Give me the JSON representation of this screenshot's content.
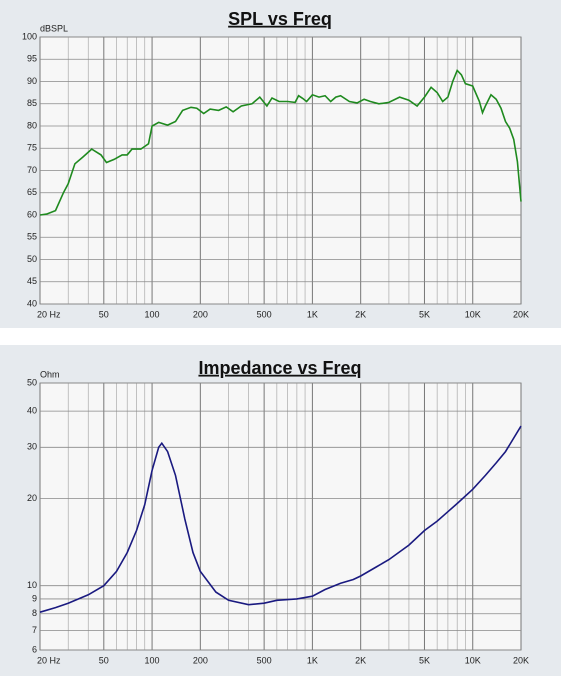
{
  "chart_data": [
    {
      "type": "line",
      "title": "SPL vs Freq",
      "y_label": "dBSPL",
      "xscale": "log",
      "yscale": "linear",
      "grid": true,
      "color": "#1f8a1f",
      "xlim": [
        20,
        20000
      ],
      "ylim": [
        40,
        100
      ],
      "xticks": [
        {
          "value": 20,
          "label": "20 Hz"
        },
        50,
        100,
        200,
        500,
        {
          "value": 1000,
          "label": "1K"
        },
        {
          "value": 2000,
          "label": "2K"
        },
        {
          "value": 5000,
          "label": "5K"
        },
        {
          "value": 10000,
          "label": "10K"
        },
        {
          "value": 20000,
          "label": "20K"
        }
      ],
      "xminor": [
        30,
        40,
        60,
        70,
        80,
        90,
        300,
        400,
        600,
        700,
        800,
        900,
        3000,
        4000,
        6000,
        7000,
        8000,
        9000
      ],
      "yticks": [
        40,
        45,
        50,
        55,
        60,
        65,
        70,
        75,
        80,
        85,
        90,
        95,
        100
      ],
      "x": [
        20,
        22,
        25,
        28,
        30,
        33,
        37,
        42,
        48,
        52,
        58,
        65,
        70,
        75,
        85,
        95,
        100,
        110,
        125,
        140,
        155,
        175,
        190,
        210,
        230,
        260,
        290,
        320,
        360,
        420,
        470,
        520,
        560,
        620,
        700,
        780,
        820,
        870,
        920,
        1000,
        1100,
        1200,
        1300,
        1400,
        1500,
        1700,
        1900,
        2100,
        2300,
        2600,
        3000,
        3500,
        4000,
        4500,
        5000,
        5500,
        6000,
        6500,
        7000,
        7500,
        8000,
        8500,
        9000,
        10000,
        11000,
        11500,
        12000,
        13000,
        14000,
        15000,
        16000,
        17000,
        18000,
        19000,
        20000
      ],
      "values": [
        60,
        60.2,
        61,
        65,
        67,
        71.5,
        73,
        74.8,
        73.5,
        71.8,
        72.5,
        73.5,
        73.5,
        74.8,
        74.8,
        76,
        80,
        80.8,
        80.2,
        81,
        83.5,
        84.2,
        84,
        82.8,
        83.8,
        83.5,
        84.3,
        83.2,
        84.5,
        85,
        86.5,
        84.5,
        86.3,
        85.5,
        85.5,
        85.3,
        86.8,
        86.2,
        85.5,
        87,
        86.5,
        86.8,
        85.5,
        86.5,
        86.8,
        85.5,
        85.2,
        86,
        85.5,
        85,
        85.3,
        86.5,
        85.8,
        84.5,
        86.5,
        88.7,
        87.5,
        85.5,
        86.5,
        90,
        92.5,
        91.5,
        89.5,
        89,
        85.5,
        83,
        84.5,
        87,
        86,
        84,
        81,
        79.5,
        77,
        72,
        63
      ]
    },
    {
      "type": "line",
      "title": "Impedance vs Freq",
      "y_label": "Ohm",
      "xscale": "log",
      "yscale": "log",
      "grid": true,
      "color": "#1a1a80",
      "xlim": [
        20,
        20000
      ],
      "ylim": [
        6,
        50
      ],
      "xticks": [
        {
          "value": 20,
          "label": "20 Hz"
        },
        50,
        100,
        200,
        500,
        {
          "value": 1000,
          "label": "1K"
        },
        {
          "value": 2000,
          "label": "2K"
        },
        {
          "value": 5000,
          "label": "5K"
        },
        {
          "value": 10000,
          "label": "10K"
        },
        {
          "value": 20000,
          "label": "20K"
        }
      ],
      "xminor": [
        30,
        40,
        60,
        70,
        80,
        90,
        300,
        400,
        600,
        700,
        800,
        900,
        3000,
        4000,
        6000,
        7000,
        8000,
        9000
      ],
      "yticks": [
        6,
        7,
        8,
        9,
        10,
        20,
        30,
        40,
        50
      ],
      "x": [
        20,
        25,
        30,
        40,
        50,
        60,
        70,
        80,
        90,
        100,
        110,
        115,
        125,
        140,
        160,
        180,
        200,
        250,
        300,
        400,
        500,
        600,
        800,
        1000,
        1200,
        1500,
        1800,
        2000,
        2500,
        3000,
        4000,
        5000,
        6000,
        7000,
        8000,
        10000,
        12000,
        14000,
        16000,
        20000
      ],
      "values": [
        8.1,
        8.4,
        8.7,
        9.3,
        10,
        11.2,
        13,
        15.5,
        19,
        25,
        30,
        31,
        29,
        24,
        17,
        13,
        11.2,
        9.5,
        8.9,
        8.6,
        8.7,
        8.9,
        9.0,
        9.2,
        9.7,
        10.2,
        10.5,
        10.8,
        11.6,
        12.3,
        13.8,
        15.5,
        16.7,
        18,
        19.2,
        21.5,
        24,
        26.5,
        29,
        35.5
      ]
    }
  ]
}
